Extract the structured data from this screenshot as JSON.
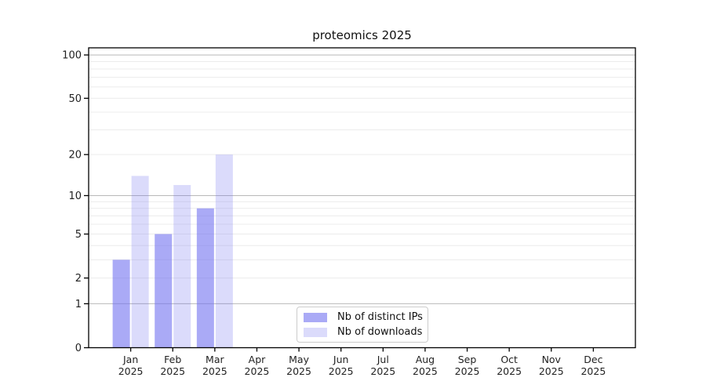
{
  "chart_data": {
    "type": "bar",
    "title": "proteomics 2025",
    "xlabel": "",
    "ylabel": "",
    "scale": "symlog-log1p",
    "ylim": [
      0,
      112
    ],
    "yticks": [
      0,
      1,
      2,
      5,
      10,
      20,
      50,
      100
    ],
    "grid_values_major": [
      1,
      10,
      100
    ],
    "grid_values_minor": [
      2,
      3,
      4,
      5,
      6,
      7,
      8,
      9,
      20,
      30,
      40,
      50,
      60,
      70,
      80,
      90
    ],
    "categories": [
      "Jan 2025",
      "Feb 2025",
      "Mar 2025",
      "Apr 2025",
      "May 2025",
      "Jun 2025",
      "Jul 2025",
      "Aug 2025",
      "Sep 2025",
      "Oct 2025",
      "Nov 2025",
      "Dec 2025"
    ],
    "series": [
      {
        "name": "Nb of distinct IPs",
        "slug": "distinct-ips",
        "color": "#7171f0",
        "opacity": 0.6,
        "visible_color": "#a8a8f6",
        "values": [
          3,
          5,
          8,
          0,
          0,
          0,
          0,
          0,
          0,
          0,
          0,
          0
        ]
      },
      {
        "name": "Nb of downloads",
        "slug": "downloads",
        "color": "#7171f0",
        "opacity": 0.25,
        "visible_color": "#dcdcf9",
        "values": [
          14,
          12,
          20,
          0,
          0,
          0,
          0,
          0,
          0,
          0,
          0,
          0
        ]
      }
    ],
    "legend": {
      "position": "bottom-center"
    },
    "grid": "on",
    "colors": {
      "grid_minor": "#ececec",
      "grid_major": "#b9b9b9",
      "axis": "#000000",
      "tick_text": "#222222"
    }
  }
}
